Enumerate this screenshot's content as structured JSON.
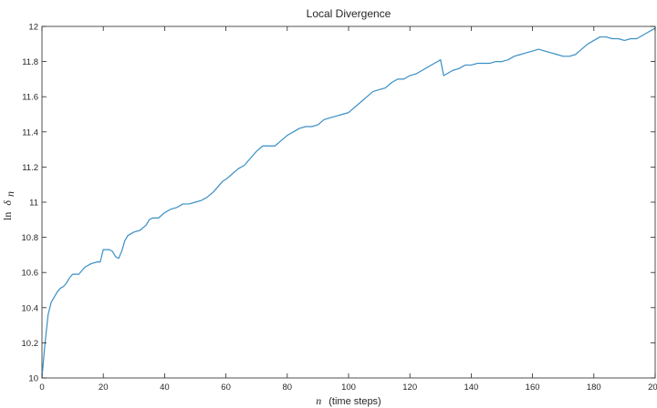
{
  "chart_data": {
    "type": "line",
    "title": "Local Divergence",
    "xlabel": {
      "symbol": "n",
      "text": "(time steps)"
    },
    "ylabel": {
      "prefix": "ln",
      "symbol": "δ",
      "subscript": "n"
    },
    "xlim": [
      0,
      200
    ],
    "ylim": [
      10,
      12
    ],
    "xticks": [
      "0",
      "20",
      "40",
      "60",
      "80",
      "100",
      "120",
      "140",
      "160",
      "180",
      "200"
    ],
    "yticks": [
      "10",
      "10.2",
      "10.4",
      "10.6",
      "10.8",
      "11",
      "11.2",
      "11.4",
      "11.6",
      "11.8",
      "12"
    ],
    "grid": false,
    "line_color": "#3a8fc4",
    "series": [
      {
        "x": [
          0,
          1,
          2,
          3,
          4,
          5,
          6,
          7,
          8,
          9,
          10,
          12,
          14,
          16,
          18,
          19,
          20,
          22,
          23,
          24,
          25,
          26,
          27,
          28,
          30,
          32,
          34,
          35,
          36,
          38,
          40,
          42,
          44,
          46,
          48,
          50,
          52,
          54,
          56,
          58,
          59,
          60,
          62,
          64,
          66,
          68,
          70,
          72,
          74,
          76,
          78,
          80,
          82,
          84,
          86,
          88,
          90,
          92,
          94,
          96,
          98,
          100,
          102,
          104,
          106,
          108,
          110,
          112,
          114,
          116,
          118,
          120,
          122,
          124,
          126,
          128,
          129,
          130,
          131,
          132,
          134,
          136,
          138,
          140,
          142,
          144,
          146,
          148,
          150,
          152,
          154,
          156,
          158,
          160,
          162,
          164,
          166,
          168,
          170,
          172,
          174,
          176,
          178,
          180,
          182,
          184,
          186,
          188,
          190,
          192,
          194,
          196,
          198,
          200
        ],
        "y": [
          10.0,
          10.2,
          10.36,
          10.43,
          10.46,
          10.49,
          10.51,
          10.52,
          10.54,
          10.57,
          10.59,
          10.59,
          10.63,
          10.65,
          10.66,
          10.66,
          10.73,
          10.73,
          10.72,
          10.69,
          10.68,
          10.72,
          10.78,
          10.81,
          10.83,
          10.84,
          10.87,
          10.9,
          10.91,
          10.91,
          10.94,
          10.96,
          10.97,
          10.99,
          10.99,
          11.0,
          11.01,
          11.03,
          11.06,
          11.1,
          11.12,
          11.13,
          11.16,
          11.19,
          11.21,
          11.25,
          11.29,
          11.32,
          11.32,
          11.32,
          11.35,
          11.38,
          11.4,
          11.42,
          11.43,
          11.43,
          11.44,
          11.47,
          11.48,
          11.49,
          11.5,
          11.51,
          11.54,
          11.57,
          11.6,
          11.63,
          11.64,
          11.65,
          11.68,
          11.7,
          11.7,
          11.72,
          11.73,
          11.75,
          11.77,
          11.79,
          11.8,
          11.81,
          11.72,
          11.73,
          11.75,
          11.76,
          11.78,
          11.78,
          11.79,
          11.79,
          11.79,
          11.8,
          11.8,
          11.81,
          11.83,
          11.84,
          11.85,
          11.86,
          11.87,
          11.86,
          11.85,
          11.84,
          11.83,
          11.83,
          11.84,
          11.87,
          11.9,
          11.92,
          11.94,
          11.94,
          11.93,
          11.93,
          11.92,
          11.93,
          11.93,
          11.95,
          11.97,
          11.99
        ]
      }
    ]
  }
}
